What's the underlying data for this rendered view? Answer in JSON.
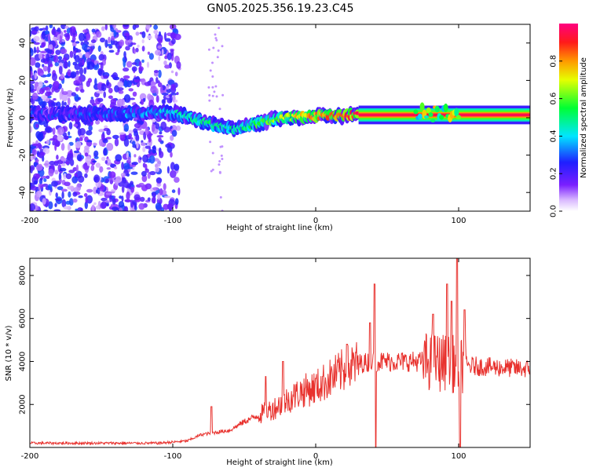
{
  "title": "GN05.2025.356.19.23.C45",
  "colors": {
    "snr_line": "#e8322e",
    "frame": "#000000",
    "background": "#ffffff"
  },
  "chart_data": [
    {
      "type": "heatmap",
      "name": "spectrogram",
      "xlabel": "Height of straight line (km)",
      "ylabel": "Frequency (Hz)",
      "xlim": [
        -200,
        150
      ],
      "ylim": [
        -50,
        50
      ],
      "x_ticks": [
        -200,
        -100,
        0,
        100
      ],
      "y_ticks": [
        -40,
        -20,
        0,
        20,
        40
      ],
      "colorbar": {
        "label": "Normalized spectral amplitude",
        "range": [
          0,
          1
        ],
        "ticks": [
          0.0,
          0.2,
          0.4,
          0.6,
          0.8
        ],
        "colormap": "rainbow (white-violet-blue-cyan-green-yellow-red-magenta)"
      },
      "ridge": {
        "description": "dominant frequency ridge vs height",
        "x": [
          -180,
          -140,
          -110,
          -95,
          -80,
          -70,
          -60,
          -50,
          -40,
          -30,
          -20,
          0,
          20,
          30,
          40,
          60,
          75,
          90,
          100,
          120,
          150
        ],
        "freq": [
          2,
          2,
          3,
          2,
          -2,
          -4,
          -6,
          -5,
          -3,
          -1,
          0,
          1,
          1,
          2,
          2,
          2,
          3,
          3,
          1,
          1,
          1
        ],
        "amplitude": [
          0.25,
          0.3,
          0.35,
          0.45,
          0.45,
          0.5,
          0.45,
          0.5,
          0.55,
          0.6,
          0.7,
          0.8,
          0.85,
          0.9,
          0.9,
          0.9,
          0.7,
          0.7,
          0.9,
          0.9,
          0.9
        ]
      },
      "noise_region": {
        "description": "scattered low-amplitude noise across all frequencies",
        "x_range": [
          -200,
          -95
        ],
        "amplitude_range": [
          0.05,
          0.3
        ]
      }
    },
    {
      "type": "line",
      "name": "snr",
      "xlabel": "Height of straight line (km)",
      "ylabel": "SNR (10 * v/v)",
      "xlim": [
        -200,
        150
      ],
      "ylim": [
        0,
        8800
      ],
      "x_ticks": [
        -200,
        -100,
        0,
        100
      ],
      "y_ticks": [
        2000,
        4000,
        6000,
        8000
      ],
      "baseline": {
        "x": [
          -200,
          -110,
          -90,
          -80,
          -70,
          -60,
          -50,
          -40,
          -30,
          -20,
          -10,
          0,
          10,
          20,
          30,
          40,
          50,
          60,
          80,
          95,
          105,
          120,
          150
        ],
        "snr": [
          200,
          200,
          300,
          600,
          700,
          800,
          1200,
          1500,
          1800,
          2200,
          2600,
          2800,
          3200,
          3600,
          3900,
          4000,
          4000,
          4000,
          4000,
          3900,
          3800,
          3750,
          3650
        ]
      },
      "spikes": [
        {
          "x": -73,
          "snr": 1900
        },
        {
          "x": -35,
          "snr": 3300
        },
        {
          "x": -23,
          "snr": 4000
        },
        {
          "x": 22,
          "snr": 4800
        },
        {
          "x": 38,
          "snr": 5800
        },
        {
          "x": 41,
          "snr": 7600
        },
        {
          "x": 42,
          "snr": 0
        },
        {
          "x": 82,
          "snr": 6200
        },
        {
          "x": 92,
          "snr": 7600
        },
        {
          "x": 95,
          "snr": 6800
        },
        {
          "x": 99,
          "snr": 8800
        },
        {
          "x": 101,
          "snr": 0
        },
        {
          "x": 104,
          "snr": 6400
        }
      ]
    }
  ]
}
